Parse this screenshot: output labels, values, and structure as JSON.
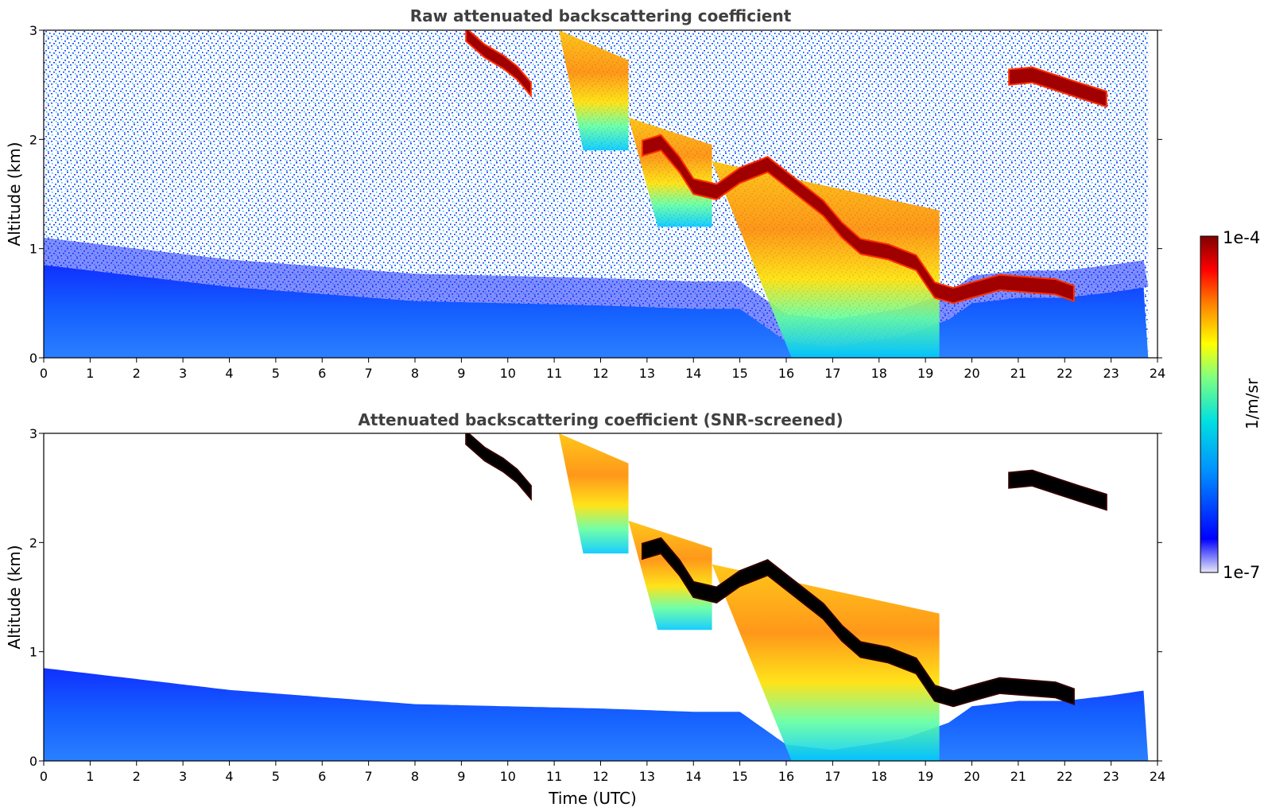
{
  "chart_data": [
    {
      "type": "heatmap",
      "title": "Raw attenuated backscattering coefficient",
      "xlabel": "",
      "ylabel": "Altitude (km)",
      "xlim": [
        0,
        24
      ],
      "ylim": [
        0,
        3
      ],
      "xticks": [
        "0",
        "1",
        "2",
        "3",
        "4",
        "5",
        "6",
        "7",
        "8",
        "9",
        "10",
        "11",
        "12",
        "13",
        "14",
        "15",
        "16",
        "17",
        "18",
        "19",
        "20",
        "21",
        "22",
        "23",
        "24"
      ],
      "yticks": [
        "0",
        "1",
        "2",
        "3"
      ],
      "screened": false,
      "features": [
        {
          "kind": "boundary_layer",
          "t": [
            0,
            4,
            8,
            12,
            14,
            15,
            15.5,
            16,
            17,
            18.5,
            19.5,
            20,
            21,
            22,
            23,
            23.8
          ],
          "top_km": [
            0.85,
            0.65,
            0.52,
            0.48,
            0.45,
            0.45,
            0.3,
            0.15,
            0.1,
            0.2,
            0.35,
            0.5,
            0.55,
            0.55,
            0.6,
            0.65
          ]
        },
        {
          "kind": "cloud",
          "t": [
            9.1,
            9.5,
            9.9,
            10.2,
            10.5
          ],
          "base_km": [
            2.9,
            2.75,
            2.65,
            2.55,
            2.4
          ],
          "thickness_km": 0.12
        },
        {
          "kind": "cloud",
          "t": [
            12.9,
            13.3,
            13.7,
            14.0,
            14.5,
            15.0,
            15.6,
            16.2,
            16.8,
            17.2,
            17.6,
            18.2,
            18.8,
            19.2,
            19.6,
            20.0,
            20.6,
            21.2,
            21.8,
            22.2
          ],
          "base_km": [
            1.85,
            1.9,
            1.7,
            1.5,
            1.45,
            1.6,
            1.7,
            1.5,
            1.3,
            1.1,
            0.95,
            0.9,
            0.8,
            0.55,
            0.5,
            0.55,
            0.62,
            0.6,
            0.58,
            0.52
          ],
          "thickness_km": 0.14
        },
        {
          "kind": "cloud",
          "t": [
            20.8,
            21.3,
            21.8,
            22.3,
            22.9
          ],
          "base_km": [
            2.5,
            2.52,
            2.45,
            2.38,
            2.3
          ],
          "thickness_km": 0.14
        },
        {
          "kind": "precip",
          "t_start": 11.1,
          "t_end": 12.6,
          "top_km": 3.0,
          "bottom_km": 1.9
        },
        {
          "kind": "precip",
          "t_start": 12.6,
          "t_end": 14.4,
          "top_km": 2.2,
          "bottom_km": 1.2
        },
        {
          "kind": "precip",
          "t_start": 14.4,
          "t_end": 19.3,
          "top_km": 1.8,
          "bottom_km": 0.0
        }
      ]
    },
    {
      "type": "heatmap",
      "title": "Attenuated backscattering coefficient (SNR-screened)",
      "xlabel": "Time (UTC)",
      "ylabel": "Altitude (km)",
      "xlim": [
        0,
        24
      ],
      "ylim": [
        0,
        3
      ],
      "xticks": [
        "0",
        "1",
        "2",
        "3",
        "4",
        "5",
        "6",
        "7",
        "8",
        "9",
        "10",
        "11",
        "12",
        "13",
        "14",
        "15",
        "16",
        "17",
        "18",
        "19",
        "20",
        "21",
        "22",
        "23",
        "24"
      ],
      "yticks": [
        "0",
        "1",
        "2",
        "3"
      ],
      "screened": true,
      "features": "same as panel 1 with low-SNR noise removed; saturated cloud cores shown in black"
    }
  ],
  "colorbar": {
    "label": "1/m/sr",
    "max_label": "1e-4",
    "min_label": "1e-7",
    "scale": "log",
    "colormap": [
      "#e8e8f8",
      "#0000ff",
      "#0090ff",
      "#00e0e0",
      "#80ff80",
      "#ffff00",
      "#ff8000",
      "#ff0000",
      "#800000"
    ]
  },
  "colors": {
    "noise": "#1a3cff",
    "boundary_layer": "#1565ff",
    "saturated": "#000000"
  }
}
